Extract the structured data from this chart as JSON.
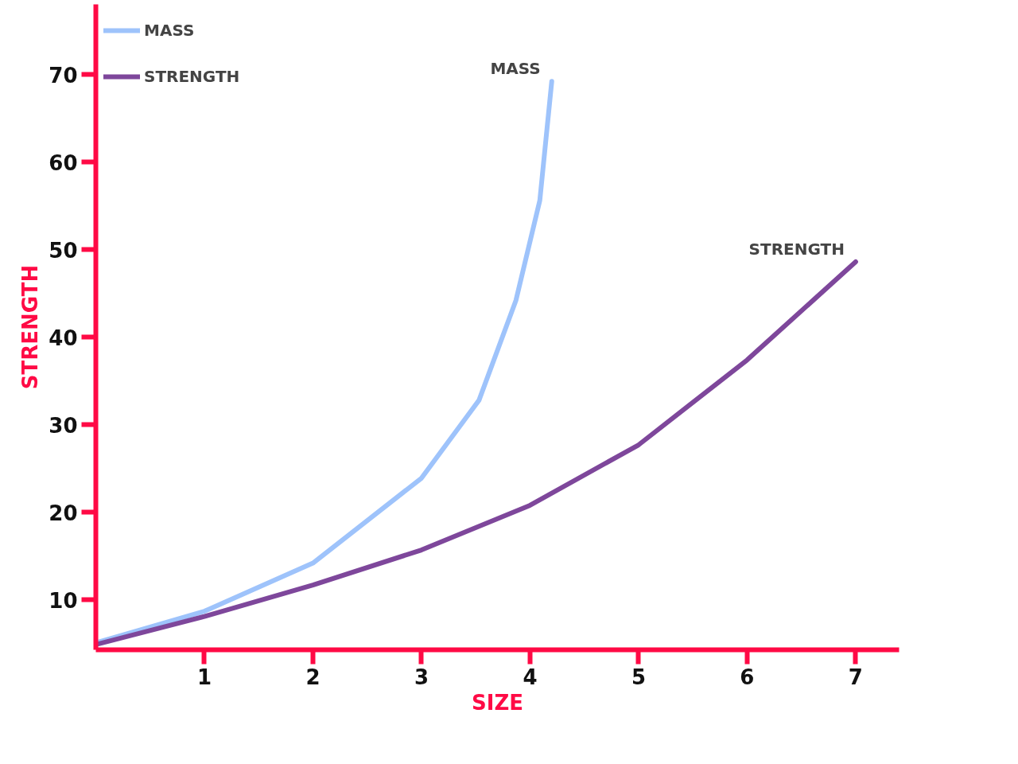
{
  "chart_data": {
    "type": "line",
    "xlabel": "SIZE",
    "ylabel": "STRENGTH",
    "xlim": [
      0,
      7.4
    ],
    "ylim": [
      4.3,
      78
    ],
    "xticks": [
      1,
      2,
      3,
      4,
      5,
      6,
      7
    ],
    "yticks": [
      10,
      20,
      30,
      40,
      50,
      60,
      70
    ],
    "grid": false,
    "legend": "top left",
    "line_style": "solid",
    "marker": "none",
    "series": [
      {
        "name": "MASS",
        "color": "#9ec3fb",
        "x": [
          0,
          1,
          2,
          3,
          3.53,
          3.87,
          4.09,
          4.2
        ],
        "values": [
          5.1,
          8.7,
          14.2,
          23.9,
          32.8,
          44.2,
          55.6,
          69.2
        ]
      },
      {
        "name": "STRENGTH",
        "color": "#7e479b",
        "x": [
          0,
          1,
          2,
          3,
          4,
          5,
          6,
          7
        ],
        "values": [
          4.9,
          8.1,
          11.7,
          15.7,
          20.8,
          27.7,
          37.4,
          48.6
        ]
      }
    ],
    "annotations": [
      {
        "text": "MASS",
        "x": 4.2,
        "y": 69.2
      },
      {
        "text": "STRENGTH",
        "x": 7,
        "y": 48.6
      }
    ]
  }
}
